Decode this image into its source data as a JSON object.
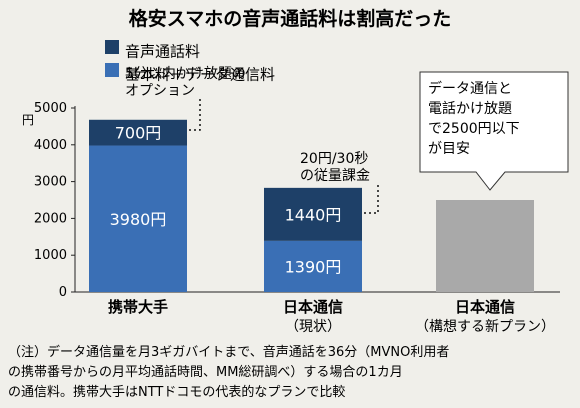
{
  "chart_data": {
    "type": "bar",
    "stacked": true,
    "title": "格安スマホの音声通話料は割高だった",
    "ylabel": "円",
    "ylim": [
      0,
      5000
    ],
    "yticks": [
      0,
      1000,
      2000,
      3000,
      4000,
      5000
    ],
    "grid": false,
    "legend_position": "top",
    "categories": [
      {
        "name": "携帯大手",
        "sub": ""
      },
      {
        "name": "日本通信",
        "sub": "（現状）"
      },
      {
        "name": "日本通信",
        "sub": "（構想する新プラン）"
      }
    ],
    "series": [
      {
        "name": "基本料＋データ通信料",
        "color": "#3a6fb5",
        "values": [
          3980,
          1390,
          null
        ],
        "labels": [
          "3980円",
          "1390円",
          ""
        ]
      },
      {
        "name": "音声通話料",
        "color": "#1e4068",
        "values": [
          700,
          1440,
          null
        ],
        "labels": [
          "700円",
          "1440円",
          ""
        ]
      }
    ],
    "planned": {
      "value": 2500,
      "color": "#a9a9a9"
    },
    "legend_order": [
      "音声通話料",
      "基本料＋データ通信料"
    ],
    "annotations": [
      {
        "lines": [
          "5分以内かけ放題の",
          "オプション"
        ]
      },
      {
        "lines": [
          "20円/30秒",
          "の従量課金"
        ]
      },
      {
        "lines": [
          "データ通信と",
          "電話かけ放題",
          "で2500円以下",
          "が目安"
        ]
      }
    ],
    "note": [
      "（注）データ通信量を月3ギガバイトまで、音声通話を36分（MVNO利用者",
      "の携帯番号からの月平均通話時間、MM総研調べ）する場合の1カ月",
      "の通信料。携帯大手はNTTドコモの代表的なプランで比較"
    ]
  }
}
